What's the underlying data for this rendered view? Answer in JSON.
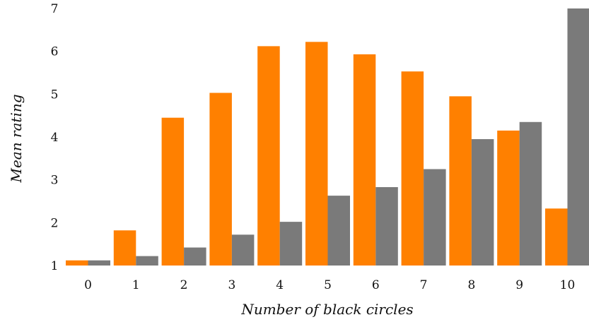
{
  "chart_data": {
    "type": "bar",
    "xlabel": "Number of black circles",
    "ylabel": "Mean rating",
    "categories": [
      "0",
      "1",
      "2",
      "3",
      "4",
      "5",
      "6",
      "7",
      "8",
      "9",
      "10"
    ],
    "ylim": [
      1,
      7
    ],
    "yticks": [
      "1",
      "2",
      "3",
      "4",
      "5",
      "6",
      "7"
    ],
    "grid": false,
    "series": [
      {
        "color": "#ff8000",
        "values": [
          1.12,
          1.82,
          4.45,
          5.03,
          6.12,
          6.22,
          5.93,
          5.53,
          4.95,
          4.15,
          2.33
        ]
      },
      {
        "color": "#7a7a7a",
        "values": [
          1.12,
          1.22,
          1.42,
          1.72,
          2.02,
          2.63,
          2.83,
          3.25,
          3.95,
          4.35,
          7.0
        ]
      }
    ]
  }
}
